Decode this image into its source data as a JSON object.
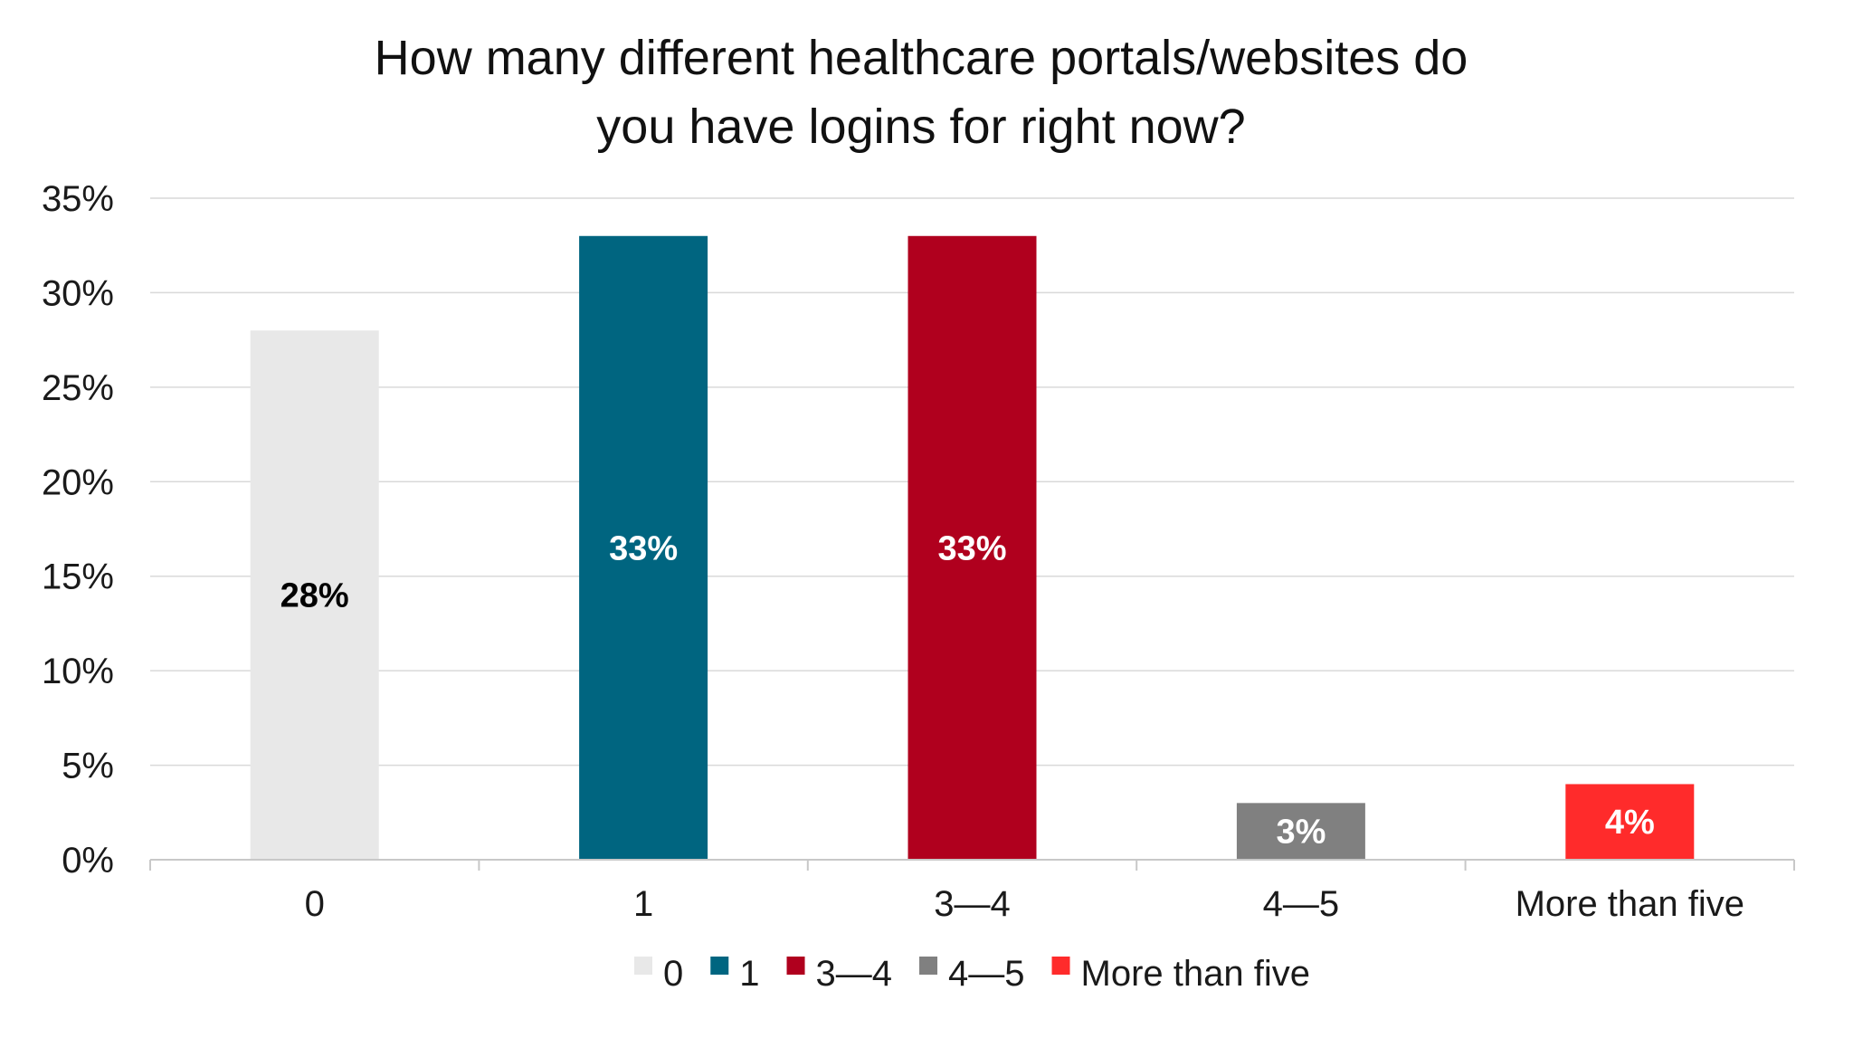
{
  "chart_data": {
    "type": "bar",
    "title_lines": [
      "How many different healthcare portals/websites do",
      "you have logins for right now?"
    ],
    "categories": [
      "0",
      "1",
      "3—4",
      "4—5",
      "More than five"
    ],
    "values": [
      28,
      33,
      33,
      3,
      4
    ],
    "data_labels": [
      "28%",
      "33%",
      "33%",
      "3%",
      "4%"
    ],
    "colors": [
      "#e8e8e8",
      "#006580",
      "#b0001e",
      "#808080",
      "#ff2b2b"
    ],
    "label_colors": [
      "#000000",
      "#ffffff",
      "#ffffff",
      "#ffffff",
      "#ffffff"
    ],
    "ylim": [
      0,
      35
    ],
    "y_ticks": [
      0,
      5,
      10,
      15,
      20,
      25,
      30,
      35
    ],
    "y_tick_labels": [
      "0%",
      "5%",
      "10%",
      "15%",
      "20%",
      "25%",
      "30%",
      "35%"
    ],
    "xlabel": "",
    "ylabel": "",
    "grid": true,
    "legend_position": "bottom",
    "legend": [
      "0",
      "1",
      "3—4",
      "4—5",
      "More than five"
    ]
  }
}
